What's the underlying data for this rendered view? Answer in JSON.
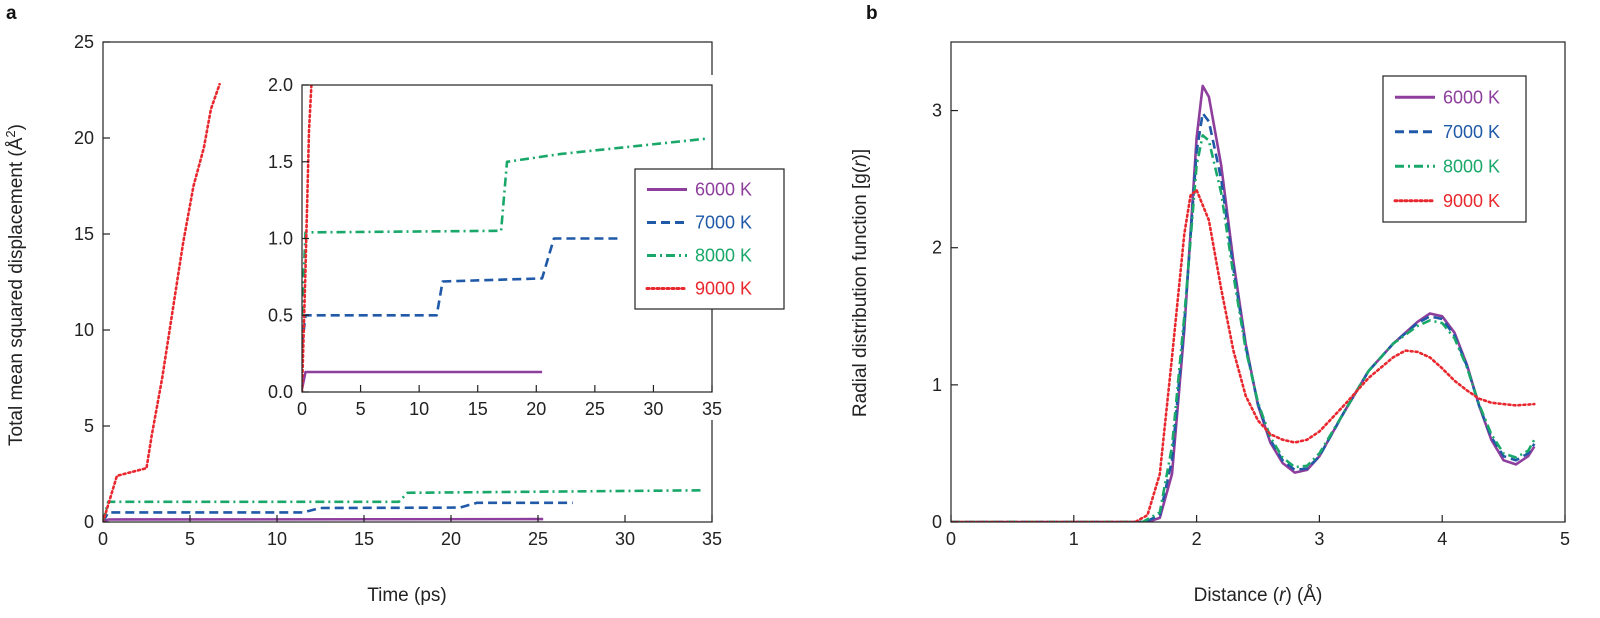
{
  "panels": {
    "a": "a",
    "b": "b"
  },
  "colors": {
    "6000 K": "#8e3e9c",
    "7000 K": "#1f59a8",
    "8000 K": "#1aa86a",
    "9000 K": "#e8282e"
  },
  "chart_data": [
    {
      "id": "a-main",
      "type": "line",
      "xlabel": "Time (ps)",
      "ylabel_parts": [
        "Total mean squared displacement (Å",
        "2",
        ")"
      ],
      "xlim": [
        0,
        35
      ],
      "ylim": [
        0,
        25
      ],
      "xticks": [
        0,
        5,
        10,
        15,
        20,
        25,
        30,
        35
      ],
      "yticks": [
        0,
        5,
        10,
        15,
        20,
        25
      ],
      "series": [
        {
          "name": "6000 K",
          "style": "solid",
          "x": [
            0,
            0.3,
            25.3
          ],
          "y": [
            0,
            0.13,
            0.15
          ]
        },
        {
          "name": "7000 K",
          "style": "dashed",
          "x": [
            0,
            0.3,
            11.5,
            12.5,
            20.5,
            21.5,
            27
          ],
          "y": [
            0,
            0.5,
            0.5,
            0.73,
            0.75,
            1.0,
            1.0
          ]
        },
        {
          "name": "8000 K",
          "style": "dashdot",
          "x": [
            0,
            0.3,
            17,
            17.5,
            34.5
          ],
          "y": [
            0,
            1.05,
            1.05,
            1.52,
            1.65
          ]
        },
        {
          "name": "9000 K",
          "style": "dotted",
          "x": [
            0,
            0.8,
            1.2,
            2.5,
            2.8,
            3.4,
            4.0,
            4.6,
            5.2,
            5.8,
            6.2,
            6.7
          ],
          "y": [
            0,
            2.4,
            2.5,
            2.8,
            4.5,
            7.5,
            11.0,
            14.5,
            17.5,
            19.5,
            21.5,
            22.8
          ]
        }
      ],
      "legend": {
        "placement": "top-right",
        "entries": [
          "6000 K",
          "7000 K",
          "8000 K",
          "9000 K"
        ]
      }
    },
    {
      "id": "a-inset",
      "type": "line",
      "xlim": [
        0,
        35
      ],
      "ylim": [
        0,
        2.0
      ],
      "xticks": [
        0,
        5,
        10,
        15,
        20,
        25,
        30,
        35
      ],
      "yticks": [
        "0.0",
        "0.5",
        "1.0",
        "1.5",
        "2.0"
      ],
      "series": [
        {
          "name": "6000 K",
          "style": "solid",
          "x": [
            0,
            0.3,
            20.5
          ],
          "y": [
            0.02,
            0.13,
            0.13
          ]
        },
        {
          "name": "7000 K",
          "style": "dashed",
          "x": [
            0,
            0.3,
            11.5,
            12,
            20.5,
            21.5,
            27
          ],
          "y": [
            0.3,
            0.5,
            0.5,
            0.72,
            0.74,
            1.0,
            1.0
          ]
        },
        {
          "name": "8000 K",
          "style": "dashdot",
          "x": [
            0,
            0.3,
            17,
            17.5,
            22,
            34.5
          ],
          "y": [
            0.5,
            1.04,
            1.05,
            1.5,
            1.55,
            1.65
          ]
        },
        {
          "name": "9000 K",
          "style": "dotted",
          "x": [
            0,
            0.3,
            0.6,
            0.8
          ],
          "y": [
            0,
            0.8,
            1.7,
            2.0
          ]
        }
      ]
    },
    {
      "id": "b",
      "type": "line",
      "xlabel_parts": [
        "Distance (",
        "r",
        ") (Å)"
      ],
      "ylabel_parts": [
        "Radial distribution function [g(",
        "r",
        ")]"
      ],
      "xlim": [
        0,
        5
      ],
      "ylim": [
        0,
        3.5
      ],
      "xticks": [
        0,
        1,
        2,
        3,
        4,
        5
      ],
      "yticks": [
        0,
        1,
        2,
        3
      ],
      "series": [
        {
          "name": "6000 K",
          "style": "solid",
          "x": [
            0,
            1.6,
            1.7,
            1.8,
            1.9,
            2.0,
            2.05,
            2.1,
            2.2,
            2.3,
            2.4,
            2.5,
            2.6,
            2.7,
            2.8,
            2.9,
            3.0,
            3.2,
            3.4,
            3.6,
            3.8,
            3.9,
            4.0,
            4.1,
            4.2,
            4.3,
            4.4,
            4.5,
            4.6,
            4.7,
            4.75
          ],
          "y": [
            0,
            0,
            0.03,
            0.35,
            1.4,
            2.8,
            3.18,
            3.1,
            2.6,
            1.9,
            1.3,
            0.85,
            0.58,
            0.43,
            0.36,
            0.38,
            0.48,
            0.8,
            1.1,
            1.3,
            1.46,
            1.52,
            1.5,
            1.38,
            1.15,
            0.85,
            0.6,
            0.45,
            0.42,
            0.48,
            0.55
          ]
        },
        {
          "name": "7000 K",
          "style": "dashed",
          "x": [
            0,
            1.58,
            1.7,
            1.8,
            1.9,
            2.0,
            2.05,
            2.1,
            2.2,
            2.3,
            2.4,
            2.5,
            2.6,
            2.7,
            2.8,
            2.9,
            3.0,
            3.2,
            3.4,
            3.6,
            3.8,
            3.9,
            4.0,
            4.1,
            4.2,
            4.3,
            4.4,
            4.5,
            4.6,
            4.7,
            4.75
          ],
          "y": [
            0,
            0,
            0.05,
            0.45,
            1.45,
            2.7,
            2.98,
            2.92,
            2.5,
            1.85,
            1.28,
            0.86,
            0.6,
            0.45,
            0.38,
            0.39,
            0.48,
            0.8,
            1.1,
            1.3,
            1.45,
            1.5,
            1.48,
            1.36,
            1.14,
            0.85,
            0.62,
            0.48,
            0.45,
            0.5,
            0.57
          ]
        },
        {
          "name": "8000 K",
          "style": "dashdot",
          "x": [
            0,
            1.56,
            1.7,
            1.8,
            1.9,
            2.0,
            2.05,
            2.1,
            2.2,
            2.3,
            2.4,
            2.5,
            2.6,
            2.7,
            2.8,
            2.9,
            3.0,
            3.2,
            3.4,
            3.6,
            3.8,
            3.9,
            4.0,
            4.1,
            4.2,
            4.3,
            4.4,
            4.5,
            4.6,
            4.7,
            4.75
          ],
          "y": [
            0,
            0,
            0.07,
            0.55,
            1.5,
            2.6,
            2.82,
            2.78,
            2.4,
            1.8,
            1.26,
            0.87,
            0.62,
            0.47,
            0.4,
            0.41,
            0.5,
            0.8,
            1.1,
            1.3,
            1.43,
            1.47,
            1.45,
            1.34,
            1.13,
            0.86,
            0.64,
            0.5,
            0.47,
            0.52,
            0.6
          ]
        },
        {
          "name": "9000 K",
          "style": "dotted",
          "x": [
            0,
            1.5,
            1.6,
            1.7,
            1.8,
            1.9,
            1.95,
            2.0,
            2.1,
            2.2,
            2.3,
            2.4,
            2.5,
            2.6,
            2.7,
            2.8,
            2.9,
            3.0,
            3.2,
            3.4,
            3.6,
            3.7,
            3.8,
            3.9,
            4.0,
            4.1,
            4.2,
            4.3,
            4.4,
            4.5,
            4.6,
            4.75
          ],
          "y": [
            0,
            0,
            0.05,
            0.35,
            1.2,
            2.1,
            2.38,
            2.42,
            2.2,
            1.7,
            1.25,
            0.92,
            0.74,
            0.64,
            0.6,
            0.58,
            0.6,
            0.66,
            0.85,
            1.05,
            1.2,
            1.25,
            1.24,
            1.2,
            1.12,
            1.03,
            0.96,
            0.9,
            0.87,
            0.86,
            0.85,
            0.86
          ]
        }
      ],
      "legend": {
        "placement": "top-right",
        "entries": [
          "6000 K",
          "7000 K",
          "8000 K",
          "9000 K"
        ]
      }
    }
  ]
}
